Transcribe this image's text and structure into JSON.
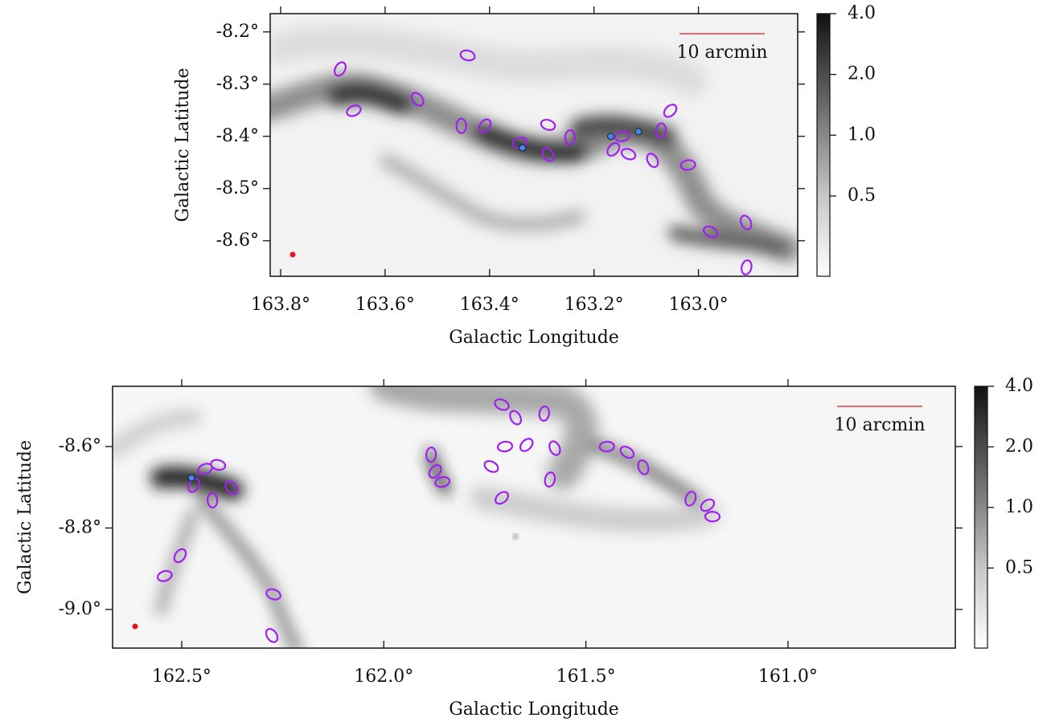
{
  "chart_data": [
    {
      "type": "image-map",
      "xlabel": "Galactic Longitude",
      "ylabel": "Galactic Latitude",
      "annotation": "10 arcmin",
      "annotation_color": "#e8141b",
      "xlim": [
        163.82,
        162.81
      ],
      "ylim": [
        -8.668,
        -8.165
      ],
      "xticks": [
        {
          "value": 163.8,
          "label": "163.8°"
        },
        {
          "value": 163.6,
          "label": "163.6°"
        },
        {
          "value": 163.4,
          "label": "163.4°"
        },
        {
          "value": 163.2,
          "label": "163.2°"
        },
        {
          "value": 163.0,
          "label": "163.0°"
        }
      ],
      "yticks": [
        {
          "value": -8.2,
          "label": "-8.2°"
        },
        {
          "value": -8.3,
          "label": "-8.3°"
        },
        {
          "value": -8.4,
          "label": "-8.4°"
        },
        {
          "value": -8.5,
          "label": "-8.5°"
        },
        {
          "value": -8.6,
          "label": "-8.6°"
        }
      ],
      "colorbar": {
        "scale": "log",
        "lim": [
          0.2,
          4.0
        ],
        "ticks": [
          {
            "value": 4,
            "label": "4.0"
          },
          {
            "value": 2,
            "label": "2.0"
          },
          {
            "value": 1,
            "label": "1.0"
          },
          0.5
        ]
      },
      "ellipses": {
        "color": "#a020f0",
        "x": [
          163.686,
          163.66,
          163.442,
          163.538,
          163.454,
          163.409,
          163.342,
          163.288,
          163.288,
          163.246,
          163.163,
          163.146,
          163.134,
          163.088,
          163.072,
          163.054,
          163.02,
          162.977,
          162.909,
          162.908
        ],
        "y": [
          -8.271,
          -8.351,
          -8.245,
          -8.329,
          -8.38,
          -8.38,
          -8.412,
          -8.378,
          -8.435,
          -8.402,
          -8.425,
          -8.4,
          -8.434,
          -8.446,
          -8.389,
          -8.351,
          -8.455,
          -8.583,
          -8.565,
          -8.651
        ]
      },
      "points": {
        "color": "#4a86e8",
        "x": [
          163.337,
          163.168,
          163.115
        ],
        "y": [
          -8.422,
          -8.4,
          -8.391
        ]
      }
    },
    {
      "type": "image-map",
      "xlabel": "Galactic Longitude",
      "ylabel": "Galactic Latitude",
      "annotation": "10 arcmin",
      "annotation_color": "#e8141b",
      "xlim": [
        162.671,
        160.586
      ],
      "ylim": [
        -9.095,
        -8.452
      ],
      "xticks": [
        {
          "value": 162.5,
          "label": "162.5°"
        },
        {
          "value": 162.0,
          "label": "162.0°"
        },
        {
          "value": 161.5,
          "label": "161.5°"
        },
        {
          "value": 161.0,
          "label": "161.0°"
        }
      ],
      "yticks": [
        {
          "value": -8.6,
          "label": "-8.6°"
        },
        {
          "value": -8.8,
          "label": "-8.8°"
        },
        {
          "value": -9.0,
          "label": "-9.0°"
        }
      ],
      "colorbar": {
        "scale": "log",
        "lim": [
          0.2,
          4.0
        ],
        "ticks": [
          {
            "value": 4,
            "label": "4.0"
          },
          {
            "value": 2,
            "label": "2.0"
          },
          {
            "value": 1,
            "label": "1.0"
          },
          0.5
        ]
      },
      "ellipses": {
        "color": "#a020f0",
        "x": [
          162.47,
          162.442,
          162.41,
          162.377,
          162.424,
          162.504,
          162.542,
          162.273,
          162.277,
          161.883,
          161.873,
          161.855,
          161.708,
          161.674,
          161.603,
          161.647,
          161.7,
          161.734,
          161.577,
          161.589,
          161.708,
          161.448,
          161.398,
          161.358,
          161.241,
          161.199,
          161.187
        ],
        "y": [
          -8.695,
          -8.655,
          -8.645,
          -8.701,
          -8.732,
          -8.868,
          -8.918,
          -8.963,
          -9.064,
          -8.62,
          -8.661,
          -8.687,
          -8.497,
          -8.529,
          -8.519,
          -8.596,
          -8.6,
          -8.649,
          -8.604,
          -8.681,
          -8.726,
          -8.6,
          -8.614,
          -8.651,
          -8.728,
          -8.744,
          -8.772
        ]
      },
      "points": {
        "color": "#4a86e8",
        "x": [
          162.476
        ],
        "y": [
          -8.677
        ]
      }
    }
  ]
}
